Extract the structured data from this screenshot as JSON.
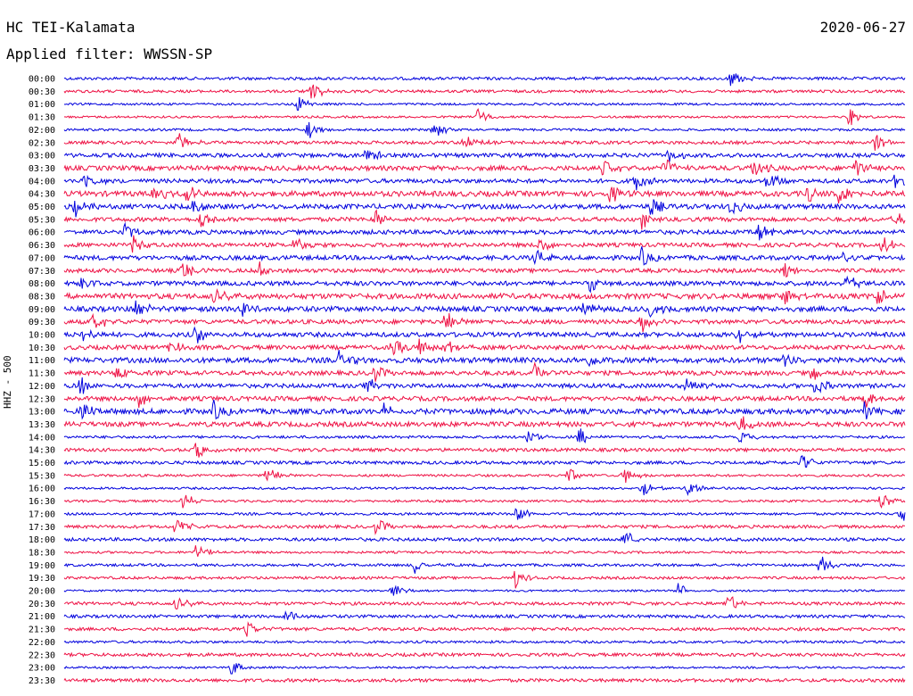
{
  "header": {
    "station": "HC TEI-Kalamata",
    "date": "2020-06-27",
    "filter": "Applied filter: WWSSN-SP"
  },
  "chart_data": {
    "type": "line",
    "title": "HC TEI-Kalamata",
    "ylabel": "HHZ - 500",
    "series_colors": [
      "#0000dd",
      "#ee1144"
    ],
    "rows": [
      {
        "label": "00:00",
        "events": [
          820
        ]
      },
      {
        "label": "00:30",
        "events": [
          350
        ]
      },
      {
        "label": "01:00",
        "events": [
          333
        ]
      },
      {
        "label": "01:30",
        "events": [
          536,
          952
        ]
      },
      {
        "label": "02:00",
        "events": [
          345,
          486
        ]
      },
      {
        "label": "02:30",
        "events": [
          200,
          520,
          980
        ]
      },
      {
        "label": "03:00",
        "events": [
          410,
          750
        ]
      },
      {
        "label": "03:30",
        "events": [
          677,
          745,
          845,
          960
        ]
      },
      {
        "label": "04:00",
        "events": [
          95,
          712,
          860,
          1005
        ]
      },
      {
        "label": "04:30",
        "events": [
          172,
          210,
          685,
          905,
          940
        ]
      },
      {
        "label": "05:00",
        "events": [
          85,
          215,
          730,
          820
        ]
      },
      {
        "label": "05:30",
        "events": [
          225,
          420,
          720,
          1003
        ]
      },
      {
        "label": "06:00",
        "events": [
          140,
          850
        ]
      },
      {
        "label": "06:30",
        "events": [
          148,
          330,
          605,
          990
        ]
      },
      {
        "label": "07:00",
        "events": [
          600,
          720,
          940
        ]
      },
      {
        "label": "07:30",
        "events": [
          205,
          290,
          880
        ]
      },
      {
        "label": "08:00",
        "events": [
          90,
          660,
          950
        ]
      },
      {
        "label": "08:30",
        "events": [
          240,
          880,
          985
        ]
      },
      {
        "label": "09:00",
        "events": [
          152,
          270,
          655,
          730
        ]
      },
      {
        "label": "09:30",
        "events": [
          105,
          500,
          720
        ]
      },
      {
        "label": "10:00",
        "events": [
          93,
          220,
          828
        ]
      },
      {
        "label": "10:30",
        "events": [
          190,
          440,
          470,
          500
        ]
      },
      {
        "label": "11:00",
        "events": [
          380,
          660,
          880
        ]
      },
      {
        "label": "11:30",
        "events": [
          130,
          420,
          600,
          910
        ]
      },
      {
        "label": "12:00",
        "events": [
          90,
          410,
          770,
          915
        ]
      },
      {
        "label": "12:30",
        "events": [
          155,
          970
        ]
      },
      {
        "label": "13:00",
        "events": [
          90,
          240,
          432,
          968
        ]
      },
      {
        "label": "13:30",
        "events": [
          830
        ]
      },
      {
        "label": "14:00",
        "events": [
          590,
          650,
          830
        ]
      },
      {
        "label": "14:30",
        "events": [
          220
        ]
      },
      {
        "label": "15:00",
        "events": [
          900
        ]
      },
      {
        "label": "15:30",
        "events": [
          298,
          635,
          700
        ]
      },
      {
        "label": "16:00",
        "events": [
          720,
          770
        ]
      },
      {
        "label": "16:30",
        "events": [
          205,
          988
        ]
      },
      {
        "label": "17:00",
        "events": [
          580,
          1010
        ]
      },
      {
        "label": "17:30",
        "events": [
          197,
          422
        ]
      },
      {
        "label": "18:00",
        "events": [
          700
        ]
      },
      {
        "label": "18:30",
        "events": [
          220
        ]
      },
      {
        "label": "19:00",
        "events": [
          465,
          920
        ]
      },
      {
        "label": "19:30",
        "events": [
          578
        ]
      },
      {
        "label": "20:00",
        "events": [
          440,
          760
        ]
      },
      {
        "label": "20:30",
        "events": [
          197,
          817
        ]
      },
      {
        "label": "21:00",
        "events": [
          320
        ]
      },
      {
        "label": "21:30",
        "events": [
          276
        ]
      },
      {
        "label": "22:00",
        "events": []
      },
      {
        "label": "22:30",
        "events": []
      },
      {
        "label": "23:00",
        "events": [
          260
        ]
      },
      {
        "label": "23:30",
        "events": []
      }
    ]
  }
}
